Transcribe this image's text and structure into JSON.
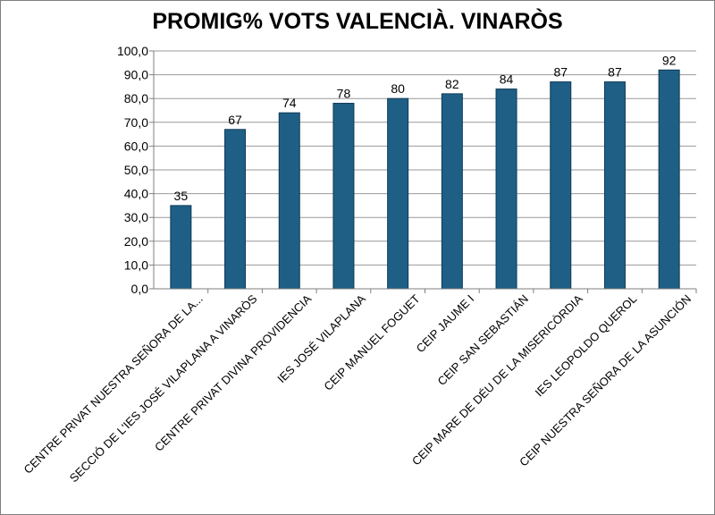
{
  "chart_data": {
    "type": "bar",
    "title": "PROMIG% VOTS VALENCIÀ. VINARÒS",
    "xlabel": "",
    "ylabel": "",
    "ylim": [
      0,
      100
    ],
    "yticks": [
      "0,0",
      "10,0",
      "20,0",
      "30,0",
      "40,0",
      "50,0",
      "60,0",
      "70,0",
      "80,0",
      "90,0",
      "100,0"
    ],
    "grid": true,
    "legend": "none",
    "categories": [
      "CENTRE PRIVAT NUESTRA SEÑORA DE LA...",
      "SECCIÓ DE L'IES JOSÉ VILAPLANA A VINARÒS",
      "CENTRE PRIVAT DIVINA PROVIDENCIA",
      "IES JOSÉ VILAPLANA",
      "CEIP MANUEL FOGUET",
      "CEIP JAUME I",
      "CEIP SAN SEBASTIÁN",
      "CEIP MARE DE DÉU DE LA MISERICÒRDIA",
      "IES LEOPOLDO QUEROL",
      "CEIP NUESTRA SEÑORA DE LA ASUNCIÓN"
    ],
    "values": [
      35,
      67,
      74,
      78,
      80,
      82,
      84,
      87,
      87,
      92
    ],
    "data_labels": [
      "35",
      "67",
      "74",
      "78",
      "80",
      "82",
      "84",
      "87",
      "87",
      "92"
    ],
    "bar_color": "#1f5f86",
    "bar_edge_color": "#0d3a57",
    "grid_color": "#999999",
    "axis_color": "#7f7f7f"
  }
}
